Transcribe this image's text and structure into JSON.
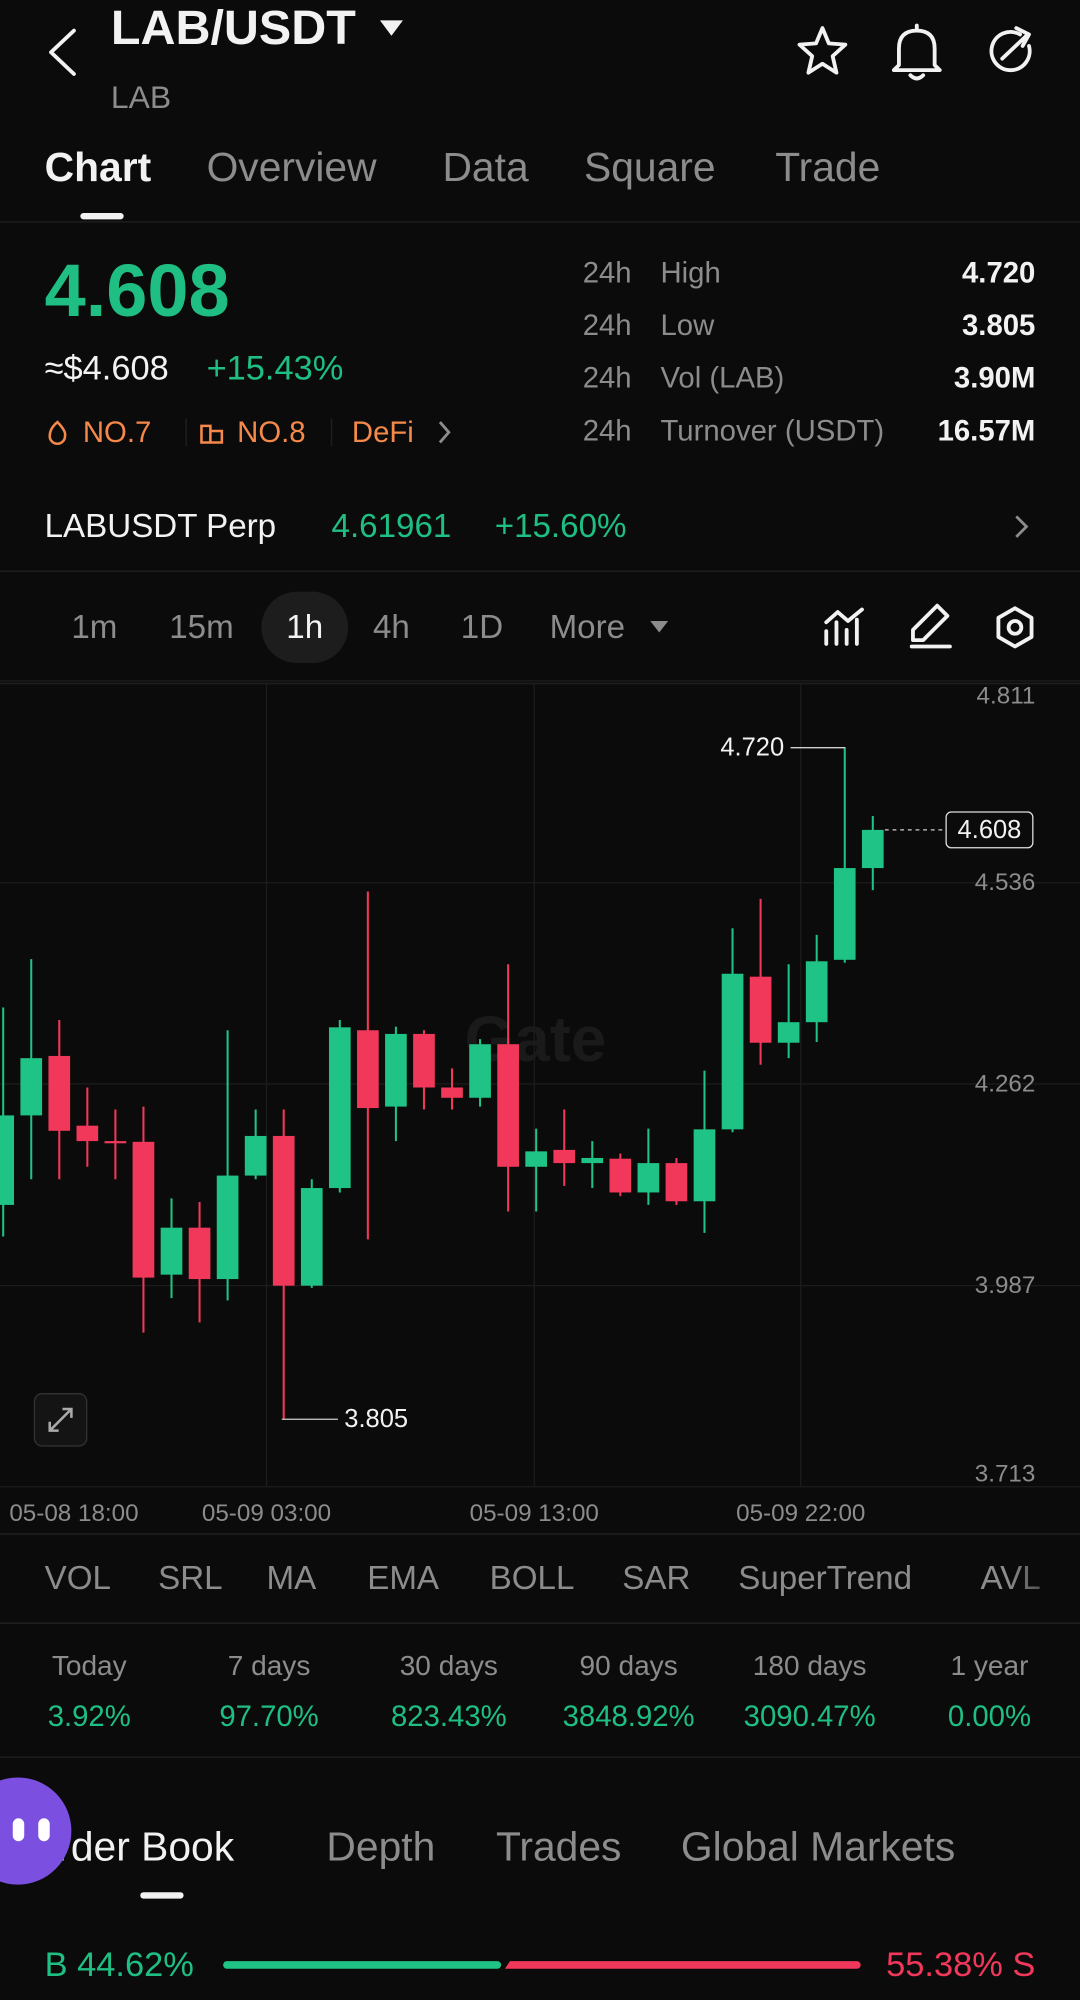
{
  "header": {
    "title": "LAB/USDT",
    "subtitle": "LAB"
  },
  "tabs": [
    "Chart",
    "Overview",
    "Data",
    "Square",
    "Trade"
  ],
  "price": {
    "last": "4.608",
    "usd": "≈$4.608",
    "change": "+15.43%"
  },
  "tags": [
    "NO.7",
    "NO.8",
    "DeFi"
  ],
  "stats": [
    {
      "period": "24h",
      "label": "High",
      "value": "4.720"
    },
    {
      "period": "24h",
      "label": "Low",
      "value": "3.805"
    },
    {
      "period": "24h",
      "label": "Vol (LAB)",
      "value": "3.90M"
    },
    {
      "period": "24h",
      "label": "Turnover (USDT)",
      "value": "16.57M"
    }
  ],
  "perp": {
    "name": "LABUSDT Perp",
    "price": "4.61961",
    "change": "+15.60%"
  },
  "timeframes": [
    "1m",
    "15m",
    "1h",
    "4h",
    "1D",
    "More"
  ],
  "chart": {
    "type": "candlestick",
    "watermark": "Gate",
    "ylim": [
      3.713,
      4.811
    ],
    "yticks": [
      4.811,
      4.536,
      4.262,
      3.987,
      3.713
    ],
    "xticks": [
      "05-08 18:00",
      "05-09 03:00",
      "05-09 13:00",
      "05-09 22:00"
    ],
    "high_marker": {
      "value": 4.72,
      "label": "4.720"
    },
    "low_marker": {
      "value": 3.805,
      "label": "3.805"
    },
    "current_marker": {
      "value": 4.608,
      "label": "4.608"
    },
    "up_color": "#1fc385",
    "down_color": "#f2385a",
    "candles": [
      {
        "open": 4.097,
        "high": 4.366,
        "low": 4.054,
        "close": 4.219
      },
      {
        "open": 4.219,
        "high": 4.432,
        "low": 4.132,
        "close": 4.297
      },
      {
        "open": 4.3,
        "high": 4.349,
        "low": 4.132,
        "close": 4.198
      },
      {
        "open": 4.205,
        "high": 4.257,
        "low": 4.149,
        "close": 4.184
      },
      {
        "open": 4.184,
        "high": 4.227,
        "low": 4.132,
        "close": 4.181
      },
      {
        "open": 4.183,
        "high": 4.231,
        "low": 3.923,
        "close": 3.998
      },
      {
        "open": 4.002,
        "high": 4.106,
        "low": 3.97,
        "close": 4.066
      },
      {
        "open": 4.066,
        "high": 4.101,
        "low": 3.937,
        "close": 3.996
      },
      {
        "open": 3.996,
        "high": 4.335,
        "low": 3.967,
        "close": 4.137
      },
      {
        "open": 4.137,
        "high": 4.227,
        "low": 4.132,
        "close": 4.191
      },
      {
        "open": 4.191,
        "high": 4.227,
        "low": 3.805,
        "close": 3.987
      },
      {
        "open": 3.987,
        "high": 4.132,
        "low": 3.984,
        "close": 4.12
      },
      {
        "open": 4.12,
        "high": 4.349,
        "low": 4.114,
        "close": 4.339
      },
      {
        "open": 4.335,
        "high": 4.524,
        "low": 4.05,
        "close": 4.229
      },
      {
        "open": 4.231,
        "high": 4.34,
        "low": 4.184,
        "close": 4.33
      },
      {
        "open": 4.33,
        "high": 4.335,
        "low": 4.227,
        "close": 4.257
      },
      {
        "open": 4.257,
        "high": 4.283,
        "low": 4.227,
        "close": 4.243
      },
      {
        "open": 4.243,
        "high": 4.323,
        "low": 4.231,
        "close": 4.316
      },
      {
        "open": 4.316,
        "high": 4.425,
        "low": 4.088,
        "close": 4.149
      },
      {
        "open": 4.149,
        "high": 4.201,
        "low": 4.088,
        "close": 4.17
      },
      {
        "open": 4.172,
        "high": 4.227,
        "low": 4.123,
        "close": 4.154
      },
      {
        "open": 4.154,
        "high": 4.184,
        "low": 4.12,
        "close": 4.161
      },
      {
        "open": 4.16,
        "high": 4.167,
        "low": 4.109,
        "close": 4.114
      },
      {
        "open": 4.114,
        "high": 4.201,
        "low": 4.097,
        "close": 4.154
      },
      {
        "open": 4.154,
        "high": 4.161,
        "low": 4.097,
        "close": 4.102
      },
      {
        "open": 4.102,
        "high": 4.28,
        "low": 4.059,
        "close": 4.2
      },
      {
        "open": 4.2,
        "high": 4.474,
        "low": 4.196,
        "close": 4.412
      },
      {
        "open": 4.408,
        "high": 4.514,
        "low": 4.288,
        "close": 4.318
      },
      {
        "open": 4.318,
        "high": 4.425,
        "low": 4.297,
        "close": 4.346
      },
      {
        "open": 4.346,
        "high": 4.465,
        "low": 4.319,
        "close": 4.429
      },
      {
        "open": 4.431,
        "high": 4.72,
        "low": 4.427,
        "close": 4.556
      },
      {
        "open": 4.556,
        "high": 4.627,
        "low": 4.526,
        "close": 4.608
      }
    ]
  },
  "indicators": [
    "VOL",
    "SRL",
    "MA",
    "EMA",
    "BOLL",
    "SAR",
    "SuperTrend",
    "AVL"
  ],
  "performance": [
    {
      "label": "Today",
      "value": "3.92%"
    },
    {
      "label": "7 days",
      "value": "97.70%"
    },
    {
      "label": "30 days",
      "value": "823.43%"
    },
    {
      "label": "90 days",
      "value": "3848.92%"
    },
    {
      "label": "180 days",
      "value": "3090.47%"
    },
    {
      "label": "1 year",
      "value": "0.00%"
    }
  ],
  "book_tabs": [
    "Order Book",
    "Depth",
    "Trades",
    "Global Markets"
  ],
  "ratio": {
    "buy": "B 44.62%",
    "sell": "55.38% S"
  }
}
